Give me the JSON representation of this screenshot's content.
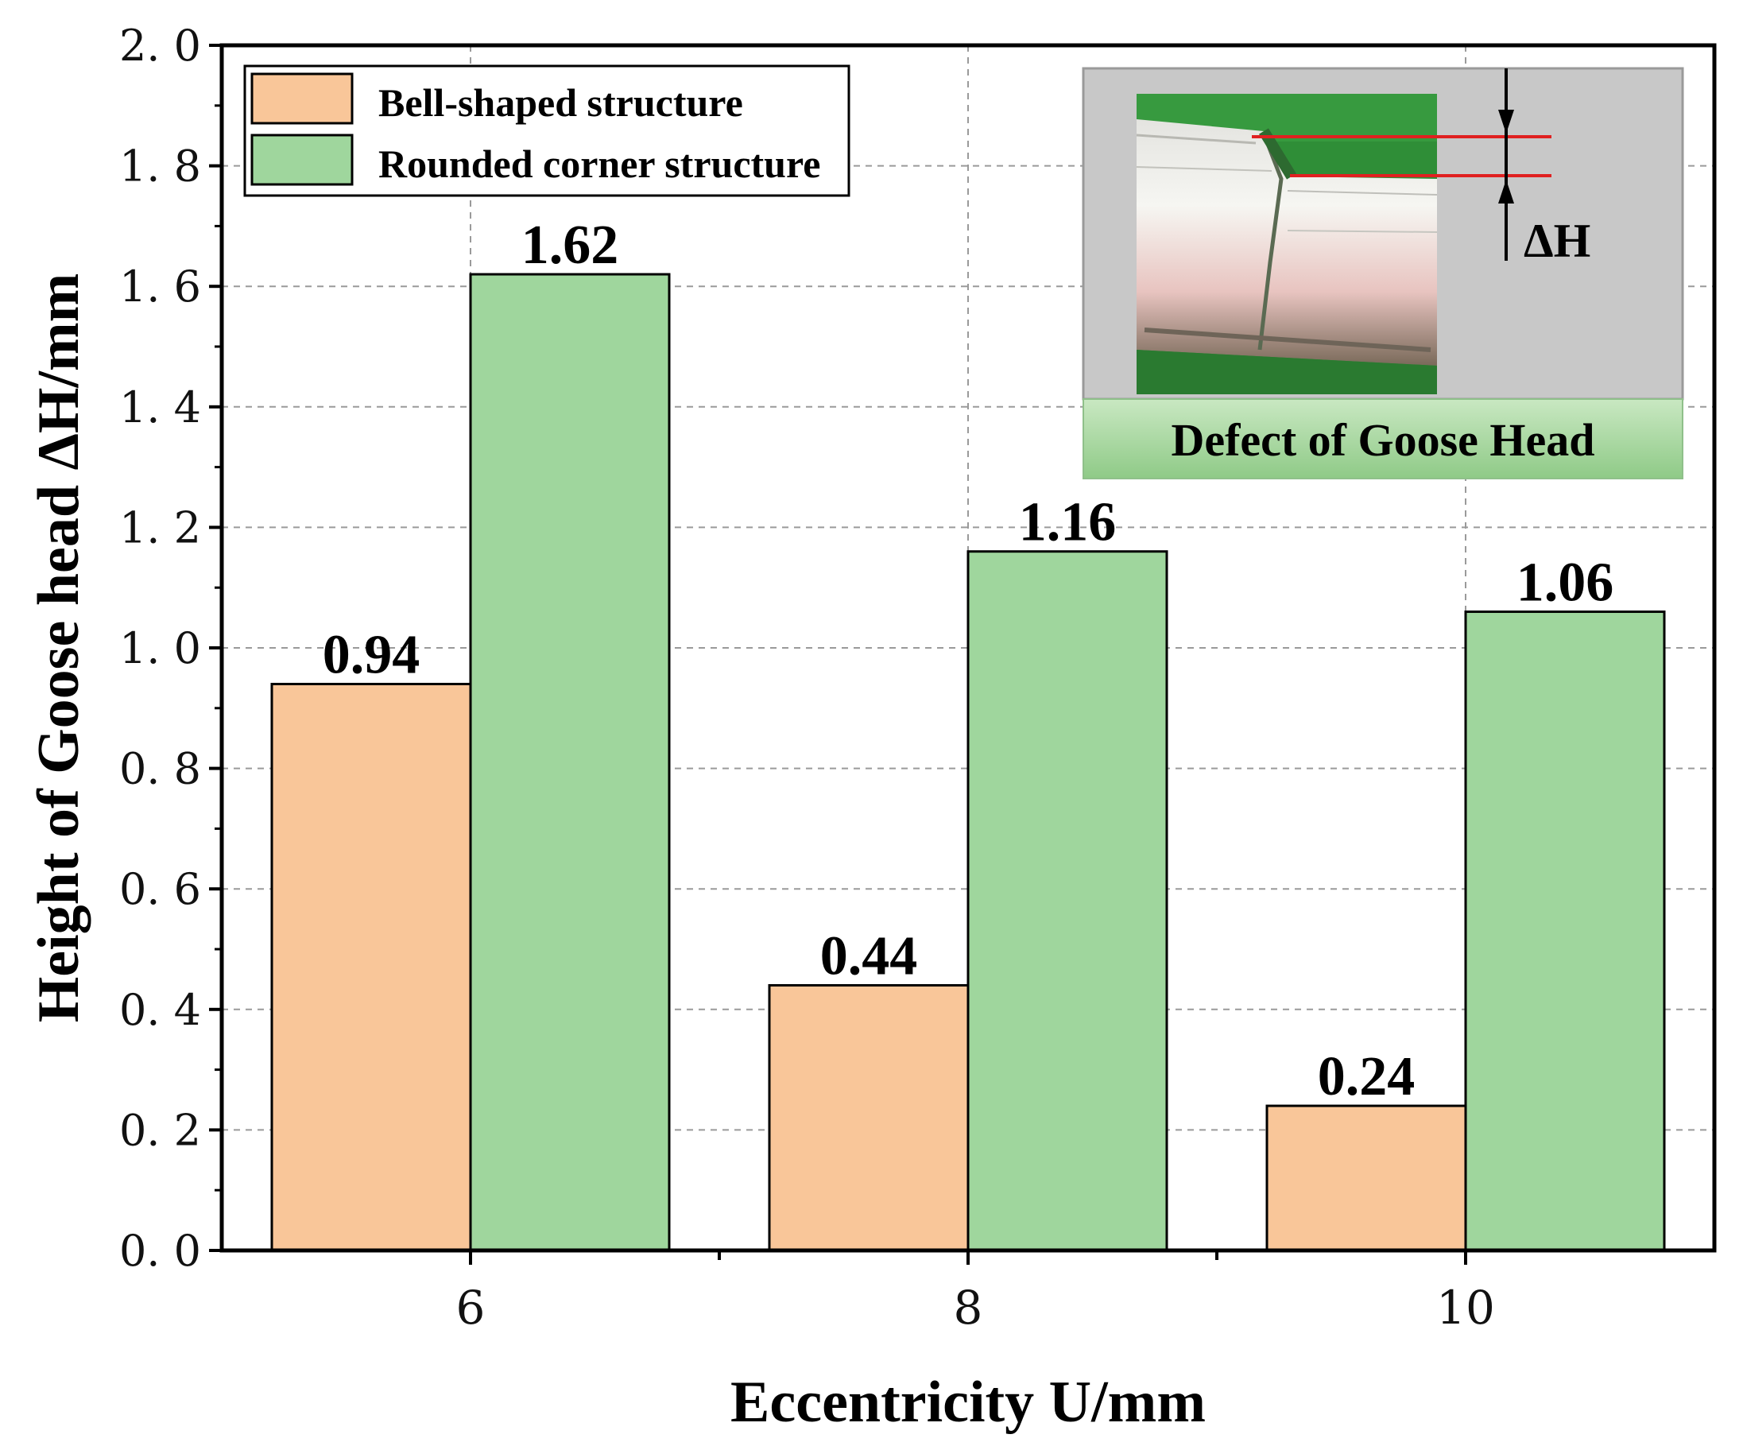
{
  "chart_data": {
    "type": "bar",
    "categories": [
      "6",
      "8",
      "10"
    ],
    "series": [
      {
        "name": "Bell-shaped structure",
        "values": [
          0.94,
          0.44,
          0.24
        ],
        "color": "#f9c699"
      },
      {
        "name": "Rounded corner structure",
        "values": [
          1.62,
          1.16,
          1.06
        ],
        "color": "#9fd69d"
      }
    ],
    "data_labels": [
      [
        "0.94",
        "0.44",
        "0.24"
      ],
      [
        "1.62",
        "1.16",
        "1.06"
      ]
    ],
    "xlabel": "Eccentricity U/mm",
    "ylabel": "Height of Goose head ΔH/mm",
    "ylim": [
      0,
      2.0
    ],
    "yticks": [
      "0. 0",
      "0. 2",
      "0. 4",
      "0. 6",
      "0. 8",
      "1. 0",
      "1. 2",
      "1. 4",
      "1. 6",
      "1. 8",
      "2. 0"
    ],
    "grid": true,
    "legend_position": "top-left"
  },
  "inset": {
    "title": "Defect of Goose Head",
    "dimension_label": "ΔH",
    "line_color": "#e02020",
    "panel_color": "#c8c8c8",
    "caption_color": "#a8d8a0"
  }
}
